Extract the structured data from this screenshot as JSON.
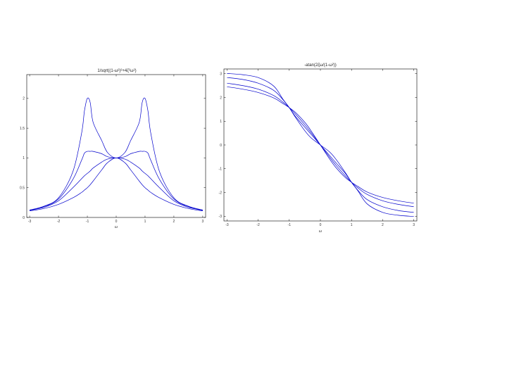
{
  "accent_color": "#0000cc",
  "chart_data": [
    {
      "type": "line",
      "title": "1/sqrt((1-ω²)²+4ζ²ω²)",
      "xlabel": "ω",
      "ylabel": "",
      "xlim": [
        -3.1,
        3.1
      ],
      "ylim": [
        0,
        2.4
      ],
      "xticks": [
        -3,
        -2,
        -1,
        0,
        1,
        2,
        3
      ],
      "xtick_labels": [
        "-3",
        "-2",
        "-1",
        "0",
        "1",
        "2",
        "3"
      ],
      "yticks": [
        0,
        0.5,
        1,
        1.5,
        2
      ],
      "ytick_labels": [
        "0",
        "0.5",
        "1",
        "1.5",
        "2"
      ],
      "grid": false,
      "x": [
        -3,
        -2.5,
        -2,
        -1.5,
        -1.2,
        -1.1,
        -1,
        -0.9,
        -0.8,
        -0.5,
        -0.3,
        0,
        0.3,
        0.5,
        0.8,
        0.9,
        1,
        1.1,
        1.2,
        1.5,
        2,
        2.5,
        3
      ],
      "series": [
        {
          "values": [
            0.125,
            0.19,
            0.33,
            0.77,
            1.41,
            1.79,
            2.0,
            1.93,
            1.6,
            1.29,
            1.09,
            1.0,
            1.09,
            1.29,
            1.6,
            1.93,
            2.0,
            1.79,
            1.41,
            0.77,
            0.33,
            0.19,
            0.125
          ]
        },
        {
          "values": [
            0.123,
            0.182,
            0.31,
            0.64,
            0.96,
            1.08,
            1.11,
            1.11,
            1.11,
            1.07,
            1.02,
            1.0,
            1.02,
            1.07,
            1.11,
            1.11,
            1.11,
            1.08,
            0.96,
            0.64,
            0.31,
            0.182,
            0.123
          ]
        },
        {
          "values": [
            0.12,
            0.17,
            0.28,
            0.5,
            0.65,
            0.7,
            0.74,
            0.78,
            0.83,
            0.93,
            0.98,
            1.0,
            0.98,
            0.93,
            0.83,
            0.78,
            0.74,
            0.7,
            0.65,
            0.5,
            0.28,
            0.17,
            0.12
          ]
        },
        {
          "values": [
            0.11,
            0.15,
            0.22,
            0.33,
            0.42,
            0.46,
            0.5,
            0.55,
            0.61,
            0.8,
            0.92,
            1.0,
            0.92,
            0.8,
            0.61,
            0.55,
            0.5,
            0.46,
            0.42,
            0.33,
            0.22,
            0.15,
            0.11
          ]
        }
      ]
    },
    {
      "type": "line",
      "title": "-atan(2ζω/(1-ω²))",
      "xlabel": "ω",
      "ylabel": "",
      "xlim": [
        -3.1,
        3.1
      ],
      "ylim": [
        -3.2,
        3.2
      ],
      "xticks": [
        -3,
        -2,
        -1,
        0,
        1,
        2,
        3
      ],
      "xtick_labels": [
        "-3",
        "-2",
        "-1",
        "0",
        "1",
        "2",
        "3"
      ],
      "yticks": [
        -3,
        -2,
        -1,
        0,
        1,
        2,
        3
      ],
      "ytick_labels": [
        "-3",
        "-2",
        "-1",
        "0",
        "1",
        "2",
        "3"
      ],
      "grid": false,
      "x": [
        -3,
        -2.5,
        -2,
        -1.5,
        -1.2,
        -1,
        -0.8,
        -0.5,
        -0.3,
        0,
        0.3,
        0.5,
        0.8,
        1,
        1.2,
        1.5,
        2,
        2.5,
        3
      ],
      "series": [
        {
          "values": [
            3.01,
            2.96,
            2.84,
            2.48,
            1.92,
            1.57,
            1.16,
            0.6,
            0.3,
            0,
            -0.3,
            -0.6,
            -1.16,
            -1.57,
            -1.92,
            -2.48,
            -2.84,
            -2.96,
            -3.01
          ]
        },
        {
          "values": [
            2.84,
            2.76,
            2.6,
            2.3,
            1.9,
            1.57,
            1.2,
            0.75,
            0.45,
            0,
            -0.45,
            -0.75,
            -1.2,
            -1.57,
            -1.9,
            -2.3,
            -2.6,
            -2.76,
            -2.84
          ]
        },
        {
          "values": [
            2.6,
            2.5,
            2.35,
            2.08,
            1.8,
            1.57,
            1.3,
            0.85,
            0.52,
            0,
            -0.52,
            -0.85,
            -1.3,
            -1.57,
            -1.8,
            -2.08,
            -2.35,
            -2.5,
            -2.6
          ]
        },
        {
          "values": [
            2.45,
            2.35,
            2.21,
            1.98,
            1.74,
            1.57,
            1.37,
            0.95,
            0.6,
            0,
            -0.6,
            -0.95,
            -1.37,
            -1.57,
            -1.74,
            -1.98,
            -2.21,
            -2.35,
            -2.45
          ]
        }
      ]
    }
  ]
}
